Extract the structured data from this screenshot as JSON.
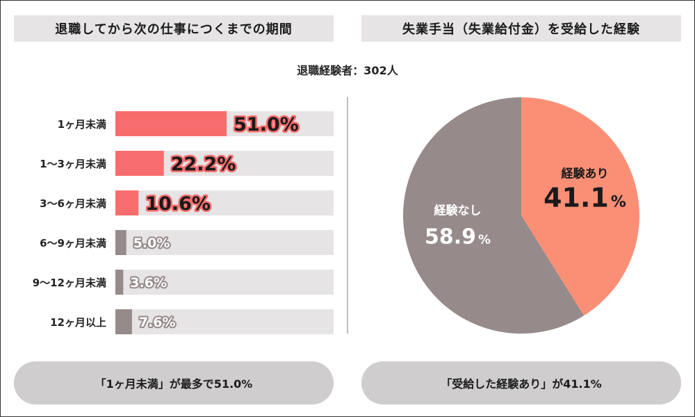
{
  "left_panel": {
    "title": "退職してから次の仕事につくまでの期間",
    "summary": "「1ヶ月未満」が最多で51.0%"
  },
  "right_panel": {
    "title": "失業手当（失業給付金）を受給した経験",
    "summary": "「受給した経験あり」が41.1%"
  },
  "respondents_label": "退職経験者：302人",
  "colors": {
    "highlight": "#f76d6d",
    "muted": "#968a8a",
    "track": "#e6e4e4",
    "pie_yes": "#fb8f76",
    "pie_no": "#968a8a"
  },
  "chart_data": [
    {
      "type": "bar",
      "orientation": "horizontal",
      "categories": [
        "1ヶ月未満",
        "1〜3ヶ月未満",
        "3〜6ヶ月未満",
        "6〜9ヶ月未満",
        "9〜12ヶ月未満",
        "12ヶ月以上"
      ],
      "values": [
        51.0,
        22.2,
        10.6,
        5.0,
        3.6,
        7.6
      ],
      "labels": [
        "51.0%",
        "22.2%",
        "10.6%",
        "5.0%",
        "3.6%",
        "7.6%"
      ],
      "highlighted": [
        true,
        true,
        true,
        false,
        false,
        false
      ],
      "xlim": [
        0,
        100
      ]
    },
    {
      "type": "pie",
      "slices": [
        {
          "name": "経験あり",
          "value": 41.1,
          "label": "41.1",
          "unit": "%"
        },
        {
          "name": "経験なし",
          "value": 58.9,
          "label": "58.9",
          "unit": "%"
        }
      ]
    }
  ]
}
